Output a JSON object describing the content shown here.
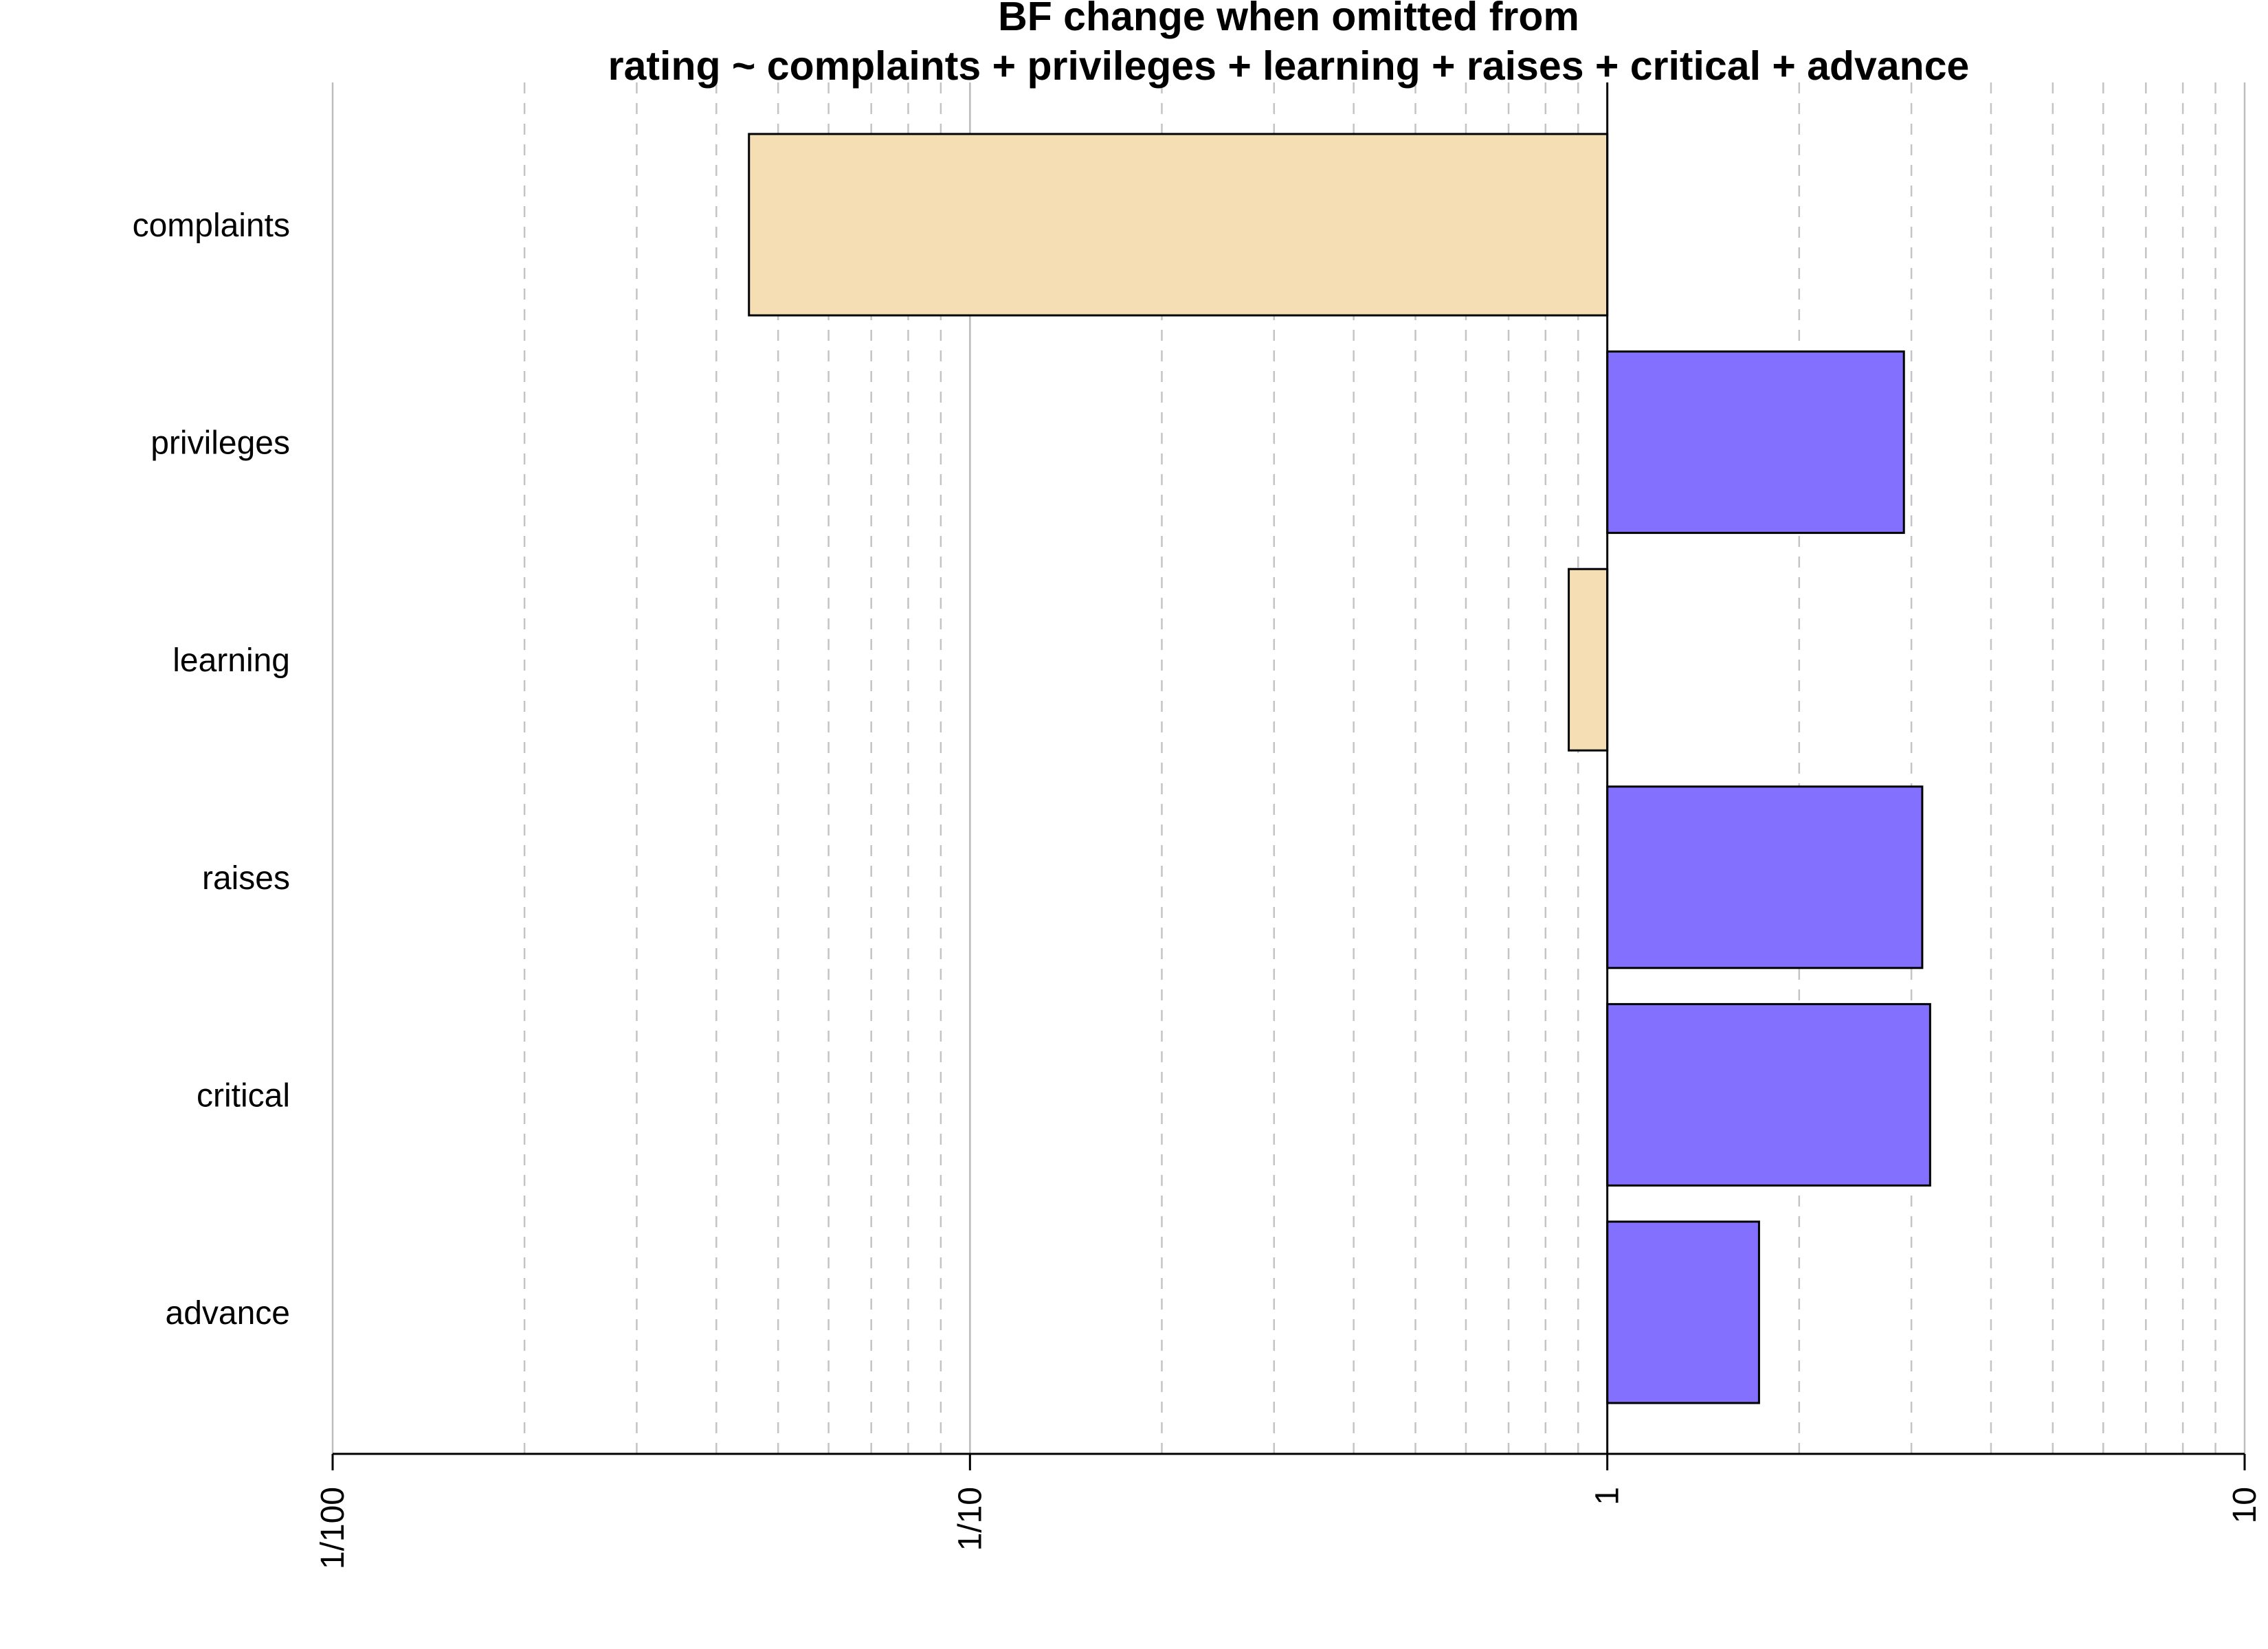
{
  "chart_data": {
    "type": "bar",
    "orientation": "horizontal",
    "title": "BF change when omitted from",
    "subtitle": "rating ~ complaints + privileges + learning + raises + critical + advance",
    "xlabel": "",
    "ylabel": "",
    "x_scale": "log10",
    "xlim": [
      0.01,
      10
    ],
    "baseline": 1,
    "ticks": [
      {
        "value": 0.01,
        "label": "1/100"
      },
      {
        "value": 0.1,
        "label": "1/10"
      },
      {
        "value": 1,
        "label": "1"
      },
      {
        "value": 10,
        "label": "10"
      }
    ],
    "grid": true,
    "categories": [
      "complaints",
      "privileges",
      "learning",
      "raises",
      "critical",
      "advance"
    ],
    "values": [
      0.045,
      2.92,
      0.87,
      3.12,
      3.21,
      1.73
    ],
    "colors": {
      "decrease": "#F5DEB3",
      "increase": "#8470FF",
      "outline": "#000000",
      "grid": "#BEBEBE"
    }
  }
}
